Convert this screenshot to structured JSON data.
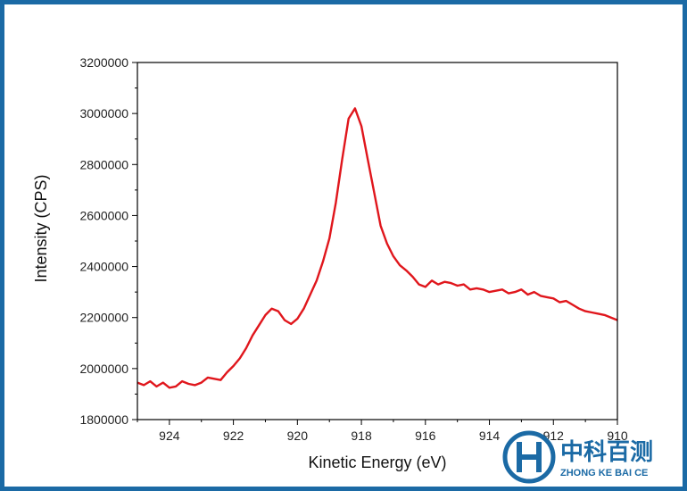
{
  "chart_data": {
    "type": "line",
    "title": "",
    "xlabel": "Kinetic Energy (eV)",
    "ylabel": "Intensity (CPS)",
    "xlim": [
      925,
      910
    ],
    "ylim": [
      1800000,
      3200000
    ],
    "x_reversed": true,
    "xticks": [
      924,
      922,
      920,
      918,
      916,
      914,
      912,
      910
    ],
    "yticks": [
      1800000,
      2000000,
      2200000,
      2400000,
      2600000,
      2800000,
      3000000,
      3200000
    ],
    "xtick_labels": [
      "924",
      "922",
      "920",
      "918",
      "916",
      "914",
      "912",
      "910"
    ],
    "ytick_labels": [
      "1800000",
      "2000000",
      "2200000",
      "2400000",
      "2600000",
      "2800000",
      "3000000",
      "3200000"
    ],
    "grid": false,
    "line_color": "#e0161c",
    "series": [
      {
        "x": [
          925.0,
          924.8,
          924.6,
          924.4,
          924.2,
          924.0,
          923.8,
          923.6,
          923.4,
          923.2,
          923.0,
          922.8,
          922.6,
          922.4,
          922.2,
          922.0,
          921.8,
          921.6,
          921.4,
          921.2,
          921.0,
          920.8,
          920.6,
          920.4,
          920.2,
          920.0,
          919.8,
          919.6,
          919.4,
          919.2,
          919.0,
          918.8,
          918.6,
          918.4,
          918.2,
          918.0,
          917.8,
          917.6,
          917.4,
          917.2,
          917.0,
          916.8,
          916.6,
          916.4,
          916.2,
          916.0,
          915.8,
          915.6,
          915.4,
          915.2,
          915.0,
          914.8,
          914.6,
          914.4,
          914.2,
          914.0,
          913.8,
          913.6,
          913.4,
          913.2,
          913.0,
          912.8,
          912.6,
          912.4,
          912.2,
          912.0,
          911.8,
          911.6,
          911.4,
          911.2,
          911.0,
          910.8,
          910.6,
          910.4,
          910.2,
          910.0
        ],
        "y": [
          1945000,
          1935000,
          1950000,
          1930000,
          1945000,
          1925000,
          1930000,
          1950000,
          1940000,
          1935000,
          1945000,
          1965000,
          1960000,
          1955000,
          1985000,
          2010000,
          2040000,
          2080000,
          2130000,
          2170000,
          2210000,
          2235000,
          2225000,
          2190000,
          2175000,
          2195000,
          2235000,
          2290000,
          2345000,
          2420000,
          2510000,
          2650000,
          2820000,
          2980000,
          3020000,
          2950000,
          2820000,
          2690000,
          2560000,
          2490000,
          2440000,
          2405000,
          2385000,
          2360000,
          2330000,
          2320000,
          2345000,
          2330000,
          2340000,
          2335000,
          2325000,
          2330000,
          2310000,
          2315000,
          2310000,
          2300000,
          2305000,
          2310000,
          2295000,
          2300000,
          2310000,
          2290000,
          2300000,
          2285000,
          2280000,
          2275000,
          2260000,
          2265000,
          2250000,
          2235000,
          2225000,
          2220000,
          2215000,
          2210000,
          2200000,
          2190000
        ]
      }
    ]
  },
  "watermark": {
    "brand_name": "中科百测",
    "brand_sub": "ZHONG KE BAI CE",
    "color": "#1b6aa5"
  },
  "frame_color": "#1b6aa5"
}
